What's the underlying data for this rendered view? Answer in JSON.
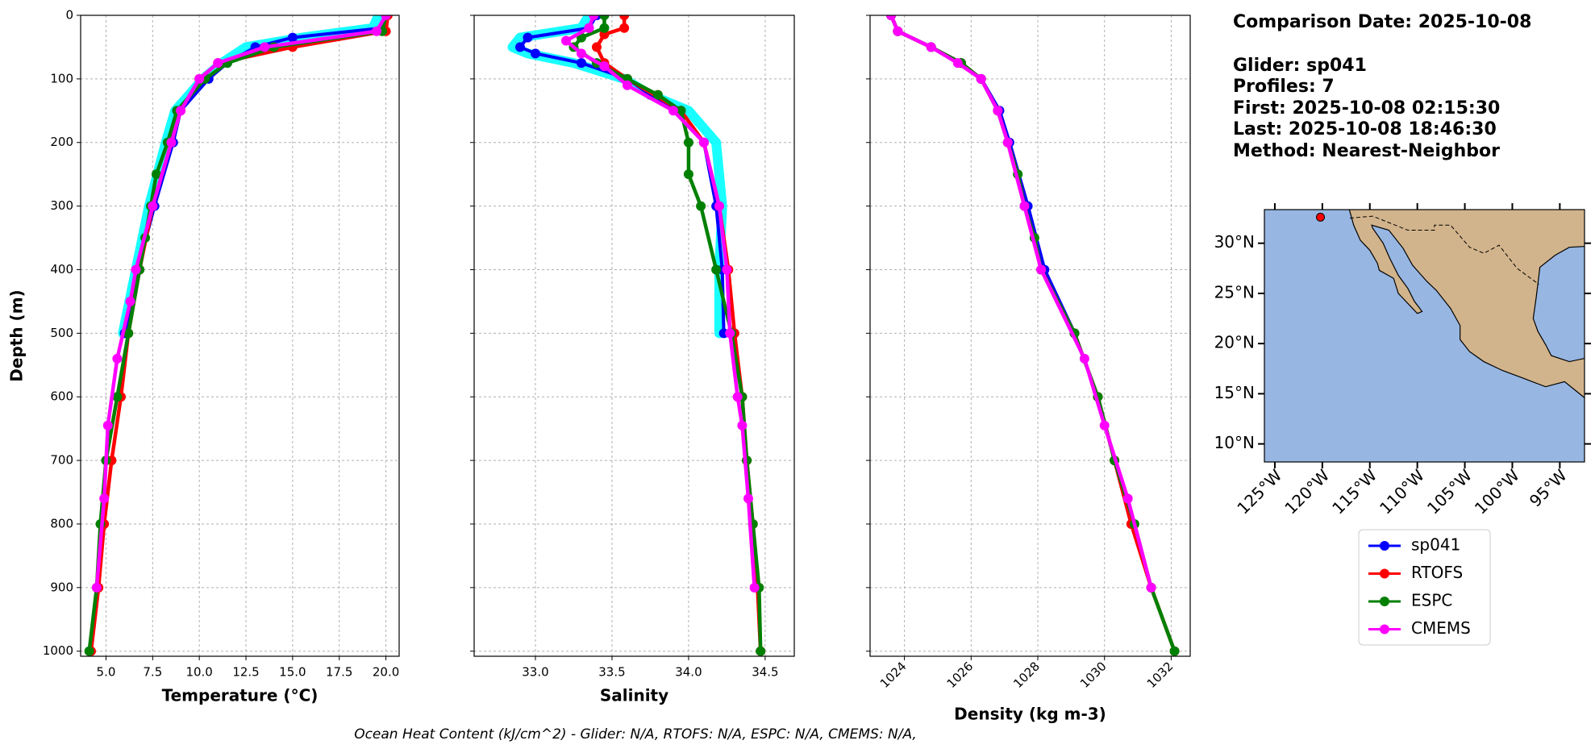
{
  "chart_data": [
    {
      "type": "line",
      "xlabel": "Temperature (°C)",
      "ylabel": "Depth (m)",
      "xlim": [
        3.64,
        20.71
      ],
      "ylim": [
        1008,
        0
      ],
      "xticks": [
        {
          "value": 5,
          "label": "5.0"
        },
        7.5,
        {
          "value": 10,
          "label": "10.0"
        },
        12.5,
        {
          "value": 15,
          "label": "15.0"
        },
        17.5,
        {
          "value": 20,
          "label": "20.0"
        }
      ],
      "yticks": [
        0,
        100,
        200,
        300,
        400,
        500,
        600,
        700,
        800,
        900,
        1000
      ],
      "grid": true,
      "series": [
        {
          "color": "#00ffff",
          "y": [
            0,
            20,
            35,
            50,
            75,
            100,
            150,
            200,
            300,
            400,
            500
          ],
          "x": [
            19.6,
            19.3,
            15.5,
            12.5,
            11.2,
            10.2,
            8.7,
            8.2,
            7.3,
            6.6,
            5.9
          ]
        },
        {
          "name": "sp041",
          "color": "#0000ff",
          "y": [
            0,
            20,
            35,
            50,
            75,
            100,
            150,
            200,
            300,
            400,
            500
          ],
          "x": [
            20,
            19.8,
            15,
            13,
            11.5,
            10.5,
            9,
            8.6,
            7.6,
            6.7,
            6
          ]
        },
        {
          "name": "RTOFS",
          "color": "#ff0000",
          "y": [
            0,
            25,
            50,
            75,
            100,
            150,
            200,
            300,
            400,
            500,
            600,
            700,
            800,
            900,
            1000
          ],
          "x": [
            20.1,
            20,
            15,
            11,
            10,
            9,
            8.5,
            7.5,
            6.8,
            6.2,
            5.8,
            5.3,
            4.9,
            4.6,
            4.2
          ]
        },
        {
          "name": "ESPC",
          "color": "#008000",
          "y": [
            0,
            25,
            50,
            75,
            100,
            150,
            200,
            250,
            300,
            350,
            400,
            500,
            600,
            700,
            800,
            900,
            1000
          ],
          "x": [
            20,
            19.8,
            14,
            11.5,
            10.3,
            8.8,
            8.3,
            7.7,
            7.4,
            7.1,
            6.8,
            6.2,
            5.6,
            5,
            4.7,
            4.5,
            4.1
          ]
        },
        {
          "name": "CMEMS",
          "color": "#ff00ff",
          "y": [
            0,
            25,
            50,
            75,
            100,
            150,
            200,
            300,
            400,
            450,
            540,
            645,
            760,
            900
          ],
          "x": [
            20,
            19.5,
            13.5,
            11,
            10,
            9,
            8.5,
            7.5,
            6.6,
            6.3,
            5.6,
            5.1,
            4.9,
            4.5
          ]
        }
      ]
    },
    {
      "type": "line",
      "xlabel": "Salinity",
      "xlim": [
        32.6,
        34.69
      ],
      "ylim": [
        1008,
        0
      ],
      "xticks": [
        {
          "value": 33,
          "label": "33.0"
        },
        33.5,
        {
          "value": 34,
          "label": "34.0"
        },
        34.5
      ],
      "yticks": [
        0,
        100,
        200,
        300,
        400,
        500,
        600,
        700,
        800,
        900,
        1000
      ],
      "grid": true,
      "series": [
        {
          "color": "#00ffff",
          "y": [
            0,
            20,
            35,
            50,
            60,
            75,
            100,
            125,
            150,
            200,
            300,
            400,
            500
          ],
          "x": [
            33.35,
            33.3,
            32.9,
            32.85,
            32.95,
            33.25,
            33.58,
            33.75,
            34,
            34.18,
            34.22,
            34.2,
            34.2
          ]
        },
        {
          "name": "sp041",
          "color": "#0000ff",
          "y": [
            0,
            20,
            35,
            50,
            60,
            75,
            100,
            125,
            150,
            200,
            300,
            400,
            500
          ],
          "x": [
            33.4,
            33.35,
            32.95,
            32.9,
            33,
            33.3,
            33.6,
            33.75,
            33.95,
            34.1,
            34.18,
            34.22,
            34.23
          ]
        },
        {
          "name": "RTOFS",
          "color": "#ff0000",
          "y": [
            0,
            20,
            30,
            50,
            75,
            100,
            150,
            200,
            300,
            400,
            500,
            600,
            700,
            800,
            900,
            1000
          ],
          "x": [
            33.58,
            33.58,
            33.45,
            33.4,
            33.45,
            33.6,
            33.95,
            34.1,
            34.2,
            34.26,
            34.3,
            34.35,
            34.38,
            34.42,
            34.45,
            34.47
          ]
        },
        {
          "name": "ESPC",
          "color": "#008000",
          "y": [
            0,
            20,
            35,
            50,
            75,
            100,
            125,
            150,
            200,
            250,
            300,
            400,
            500,
            600,
            700,
            800,
            900,
            1000
          ],
          "x": [
            33.45,
            33.45,
            33.3,
            33.25,
            33.4,
            33.6,
            33.8,
            33.95,
            34,
            34,
            34.08,
            34.18,
            34.28,
            34.35,
            34.38,
            34.42,
            34.46,
            34.47
          ]
        },
        {
          "name": "CMEMS",
          "color": "#ff00ff",
          "y": [
            0,
            20,
            40,
            60,
            80,
            110,
            150,
            200,
            300,
            400,
            500,
            600,
            645,
            760,
            900
          ],
          "x": [
            33.38,
            33.35,
            33.2,
            33.3,
            33.45,
            33.6,
            33.9,
            34.1,
            34.2,
            34.25,
            34.27,
            34.32,
            34.35,
            34.39,
            34.43
          ]
        }
      ]
    },
    {
      "type": "line",
      "xlabel": "Density (kg m-3)",
      "xlim": [
        1022.97,
        1032.57
      ],
      "ylim": [
        1008,
        0
      ],
      "xticks": [
        1024,
        1026,
        1028,
        1030,
        1032
      ],
      "yticks": [
        0,
        100,
        200,
        300,
        400,
        500,
        600,
        700,
        800,
        900,
        1000
      ],
      "grid": true,
      "series": [
        {
          "name": "sp041",
          "color": "#0000ff",
          "y": [
            0,
            25,
            50,
            75,
            100,
            150,
            200,
            300,
            400,
            500
          ],
          "x": [
            1023.6,
            1023.8,
            1024.8,
            1025.7,
            1026.3,
            1026.85,
            1027.15,
            1027.7,
            1028.2,
            1029.1
          ]
        },
        {
          "name": "RTOFS",
          "color": "#ff0000",
          "y": [
            0,
            25,
            50,
            75,
            100,
            150,
            200,
            300,
            400,
            500,
            600,
            700,
            800,
            900,
            1000
          ],
          "x": [
            1023.6,
            1023.8,
            1024.8,
            1025.7,
            1026.3,
            1026.8,
            1027.1,
            1027.6,
            1028.1,
            1029.1,
            1029.8,
            1030.3,
            1030.8,
            1031.4,
            1032.1
          ]
        },
        {
          "name": "ESPC",
          "color": "#008000",
          "y": [
            0,
            25,
            50,
            75,
            100,
            150,
            200,
            250,
            300,
            350,
            400,
            500,
            600,
            700,
            800,
            900,
            1000
          ],
          "x": [
            1023.6,
            1023.8,
            1024.8,
            1025.7,
            1026.3,
            1026.8,
            1027.1,
            1027.4,
            1027.6,
            1027.9,
            1028.1,
            1029.1,
            1029.8,
            1030.3,
            1030.9,
            1031.4,
            1032.1
          ]
        },
        {
          "name": "CMEMS",
          "color": "#ff00ff",
          "y": [
            0,
            25,
            50,
            75,
            100,
            150,
            200,
            300,
            400,
            540,
            645,
            760,
            900
          ],
          "x": [
            1023.6,
            1023.8,
            1024.8,
            1025.6,
            1026.3,
            1026.8,
            1027.1,
            1027.6,
            1028.1,
            1029.4,
            1030,
            1030.7,
            1031.4
          ]
        }
      ]
    },
    {
      "type": "map",
      "xlim": [
        -126.1,
        -92.4
      ],
      "ylim": [
        8.2,
        33.35
      ],
      "xticks": [
        {
          "value": -125,
          "label": "125°W"
        },
        {
          "value": -120,
          "label": "120°W"
        },
        {
          "value": -115,
          "label": "115°W"
        },
        {
          "value": -110,
          "label": "110°W"
        },
        {
          "value": -105,
          "label": "105°W"
        },
        {
          "value": -100,
          "label": "100°W"
        },
        {
          "value": -95,
          "label": "95°W"
        }
      ],
      "yticks": [
        {
          "value": 10,
          "label": "10°N"
        },
        {
          "value": 15,
          "label": "15°N"
        },
        {
          "value": 20,
          "label": "20°N"
        },
        {
          "value": 25,
          "label": "25°N"
        },
        {
          "value": 30,
          "label": "30°N"
        }
      ],
      "marker": {
        "x": -120.2,
        "y": 32.6,
        "color": "#ff0000"
      }
    }
  ],
  "info": {
    "title": "Comparison Date: 2025-10-08",
    "lines": [
      "Glider: sp041",
      "Profiles: 7",
      "First: 2025-10-08 02:15:30",
      "Last: 2025-10-08 18:46:30",
      "Method: Nearest-Neighbor"
    ]
  },
  "footer": "Ocean Heat Content (kJ/cm^2) - Glider: N/A,  RTOFS: N/A,  ESPC: N/A,  CMEMS: N/A,"
}
